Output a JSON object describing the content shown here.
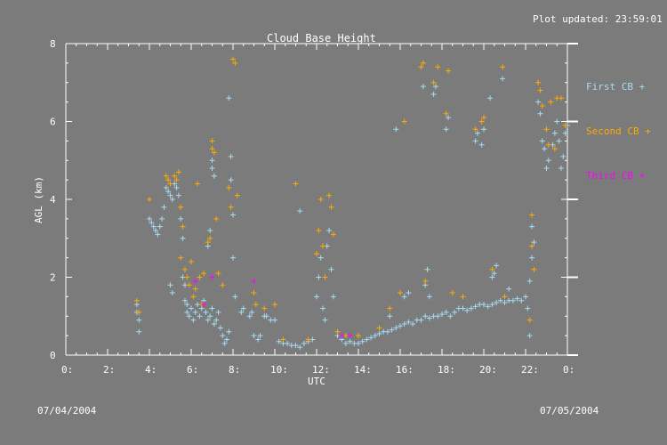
{
  "plot_updated": "Plot updated: 23:59:01",
  "date_left": "07/04/2004",
  "date_right": "07/05/2004",
  "colors": {
    "background": "#7b7b7b",
    "axes": "#ffffff",
    "first_cb": "#a6dcf2",
    "second_cb": "#ffaa00",
    "third_cb": "#ff00ff"
  },
  "chart_data": {
    "type": "scatter",
    "title": "Cloud Base Height",
    "xlabel": "UTC",
    "ylabel": "AGL (km)",
    "xlim": [
      0,
      24
    ],
    "ylim": [
      0,
      8
    ],
    "x_ticks": [
      0,
      2,
      4,
      6,
      8,
      10,
      12,
      14,
      16,
      18,
      20,
      22,
      24
    ],
    "x_tick_labels": [
      "0:",
      "2:",
      "4:",
      "6:",
      "8:",
      "10:",
      "12:",
      "14:",
      "16:",
      "18:",
      "20:",
      "22:",
      "0:"
    ],
    "y_ticks": [
      0,
      2,
      4,
      6,
      8
    ],
    "y_tick_labels": [
      "0",
      "2",
      "4",
      "6",
      "8"
    ],
    "grid": false,
    "legend_position": "right",
    "series": [
      {
        "name": "First CB +",
        "marker": "+",
        "color": "#a6dcf2",
        "points": [
          [
            3.4,
            1.3
          ],
          [
            3.4,
            1.1
          ],
          [
            3.5,
            0.9
          ],
          [
            3.5,
            0.6
          ],
          [
            4.0,
            3.5
          ],
          [
            4.1,
            3.4
          ],
          [
            4.2,
            3.3
          ],
          [
            4.3,
            3.2
          ],
          [
            4.4,
            3.1
          ],
          [
            4.5,
            3.3
          ],
          [
            4.6,
            3.5
          ],
          [
            4.7,
            3.8
          ],
          [
            4.8,
            4.3
          ],
          [
            4.9,
            4.2
          ],
          [
            5.0,
            4.1
          ],
          [
            5.1,
            4.0
          ],
          [
            5.2,
            4.4
          ],
          [
            5.0,
            1.8
          ],
          [
            5.1,
            1.6
          ],
          [
            5.3,
            4.3
          ],
          [
            5.4,
            4.1
          ],
          [
            5.5,
            3.5
          ],
          [
            5.6,
            3.0
          ],
          [
            5.6,
            2.0
          ],
          [
            5.7,
            1.8
          ],
          [
            5.7,
            1.4
          ],
          [
            5.8,
            1.3
          ],
          [
            5.8,
            1.1
          ],
          [
            5.9,
            1.0
          ],
          [
            6.0,
            1.2
          ],
          [
            6.1,
            0.9
          ],
          [
            6.2,
            1.1
          ],
          [
            6.3,
            1.3
          ],
          [
            6.4,
            1.0
          ],
          [
            6.5,
            1.2
          ],
          [
            6.6,
            1.4
          ],
          [
            6.7,
            1.1
          ],
          [
            6.8,
            0.9
          ],
          [
            6.9,
            1.0
          ],
          [
            7.0,
            1.2
          ],
          [
            7.1,
            0.8
          ],
          [
            7.2,
            0.9
          ],
          [
            7.3,
            1.1
          ],
          [
            7.4,
            0.7
          ],
          [
            7.5,
            0.5
          ],
          [
            7.6,
            0.3
          ],
          [
            7.7,
            0.4
          ],
          [
            7.8,
            0.6
          ],
          [
            6.8,
            2.8
          ],
          [
            6.9,
            3.2
          ],
          [
            7.0,
            4.8
          ],
          [
            7.0,
            5.0
          ],
          [
            7.1,
            4.6
          ],
          [
            7.8,
            6.6
          ],
          [
            7.9,
            5.1
          ],
          [
            7.9,
            4.5
          ],
          [
            8.0,
            3.6
          ],
          [
            8.0,
            2.5
          ],
          [
            8.1,
            1.5
          ],
          [
            8.4,
            1.1
          ],
          [
            8.5,
            1.2
          ],
          [
            8.8,
            1.0
          ],
          [
            8.9,
            1.1
          ],
          [
            9.0,
            0.5
          ],
          [
            9.2,
            0.4
          ],
          [
            9.3,
            0.5
          ],
          [
            9.5,
            1.0
          ],
          [
            9.6,
            1.0
          ],
          [
            9.8,
            0.9
          ],
          [
            10.0,
            0.9
          ],
          [
            10.2,
            0.35
          ],
          [
            10.4,
            0.3
          ],
          [
            10.6,
            0.3
          ],
          [
            10.8,
            0.25
          ],
          [
            11.0,
            0.25
          ],
          [
            11.2,
            0.2
          ],
          [
            11.4,
            0.3
          ],
          [
            11.6,
            0.35
          ],
          [
            11.2,
            3.7
          ],
          [
            11.8,
            0.4
          ],
          [
            12.0,
            1.5
          ],
          [
            12.1,
            2.0
          ],
          [
            12.2,
            2.5
          ],
          [
            12.3,
            1.2
          ],
          [
            12.4,
            0.9
          ],
          [
            12.5,
            2.8
          ],
          [
            12.6,
            3.2
          ],
          [
            12.7,
            2.2
          ],
          [
            12.8,
            1.5
          ],
          [
            13.0,
            0.5
          ],
          [
            13.2,
            0.4
          ],
          [
            13.4,
            0.3
          ],
          [
            13.6,
            0.35
          ],
          [
            13.8,
            0.3
          ],
          [
            14.0,
            0.3
          ],
          [
            14.2,
            0.35
          ],
          [
            14.4,
            0.4
          ],
          [
            14.6,
            0.45
          ],
          [
            14.8,
            0.5
          ],
          [
            15.0,
            0.55
          ],
          [
            15.2,
            0.6
          ],
          [
            15.4,
            0.6
          ],
          [
            15.6,
            0.65
          ],
          [
            15.8,
            0.7
          ],
          [
            16.0,
            0.75
          ],
          [
            16.2,
            0.8
          ],
          [
            16.4,
            0.85
          ],
          [
            16.6,
            0.8
          ],
          [
            16.8,
            0.9
          ],
          [
            17.0,
            0.9
          ],
          [
            17.2,
            1.0
          ],
          [
            17.4,
            0.95
          ],
          [
            17.6,
            1.0
          ],
          [
            17.8,
            1.0
          ],
          [
            18.0,
            1.05
          ],
          [
            18.2,
            1.1
          ],
          [
            18.4,
            1.0
          ],
          [
            18.6,
            1.1
          ],
          [
            18.8,
            1.2
          ],
          [
            19.0,
            1.2
          ],
          [
            19.2,
            1.15
          ],
          [
            19.4,
            1.2
          ],
          [
            19.6,
            1.25
          ],
          [
            19.8,
            1.3
          ],
          [
            20.0,
            1.3
          ],
          [
            20.2,
            1.25
          ],
          [
            20.4,
            1.3
          ],
          [
            20.6,
            1.35
          ],
          [
            20.8,
            1.4
          ],
          [
            21.0,
            1.35
          ],
          [
            21.2,
            1.4
          ],
          [
            21.4,
            1.4
          ],
          [
            21.6,
            1.45
          ],
          [
            21.8,
            1.4
          ],
          [
            22.0,
            1.5
          ],
          [
            15.5,
            1.0
          ],
          [
            16.2,
            1.5
          ],
          [
            16.4,
            1.6
          ],
          [
            17.2,
            1.8
          ],
          [
            17.3,
            2.2
          ],
          [
            17.4,
            1.5
          ],
          [
            15.8,
            5.8
          ],
          [
            17.1,
            6.9
          ],
          [
            17.6,
            6.7
          ],
          [
            17.7,
            6.9
          ],
          [
            18.2,
            5.8
          ],
          [
            18.3,
            6.1
          ],
          [
            19.6,
            5.5
          ],
          [
            19.7,
            5.7
          ],
          [
            19.9,
            5.4
          ],
          [
            20.0,
            5.8
          ],
          [
            20.3,
            6.6
          ],
          [
            20.9,
            7.1
          ],
          [
            20.4,
            2.0
          ],
          [
            20.5,
            2.1
          ],
          [
            20.6,
            2.3
          ],
          [
            21.2,
            1.7
          ],
          [
            22.2,
            0.5
          ],
          [
            22.1,
            1.2
          ],
          [
            22.2,
            1.9
          ],
          [
            22.3,
            2.5
          ],
          [
            22.4,
            2.9
          ],
          [
            22.3,
            3.3
          ],
          [
            22.6,
            6.5
          ],
          [
            22.7,
            6.2
          ],
          [
            22.8,
            5.5
          ],
          [
            22.9,
            5.3
          ],
          [
            23.0,
            4.8
          ],
          [
            23.1,
            5.0
          ],
          [
            23.3,
            5.4
          ],
          [
            23.4,
            5.7
          ],
          [
            23.5,
            6.0
          ],
          [
            23.6,
            5.5
          ],
          [
            23.7,
            4.8
          ],
          [
            23.8,
            5.1
          ],
          [
            23.9,
            5.7
          ],
          [
            24.0,
            5.9
          ]
        ]
      },
      {
        "name": "Second CB +",
        "marker": "+",
        "color": "#ffaa00",
        "points": [
          [
            3.4,
            1.4
          ],
          [
            3.5,
            1.1
          ],
          [
            4.0,
            4.0
          ],
          [
            4.8,
            4.6
          ],
          [
            4.9,
            4.5
          ],
          [
            5.0,
            4.4
          ],
          [
            5.2,
            4.6
          ],
          [
            5.3,
            4.5
          ],
          [
            5.4,
            4.7
          ],
          [
            5.5,
            3.8
          ],
          [
            5.5,
            2.5
          ],
          [
            5.6,
            3.3
          ],
          [
            5.7,
            2.2
          ],
          [
            5.8,
            2.0
          ],
          [
            5.9,
            1.8
          ],
          [
            6.0,
            2.4
          ],
          [
            6.1,
            1.5
          ],
          [
            6.2,
            1.7
          ],
          [
            6.3,
            4.4
          ],
          [
            6.4,
            2.0
          ],
          [
            6.5,
            1.3
          ],
          [
            6.6,
            2.1
          ],
          [
            6.8,
            2.9
          ],
          [
            6.9,
            3.0
          ],
          [
            7.0,
            5.3
          ],
          [
            7.0,
            5.5
          ],
          [
            7.1,
            5.2
          ],
          [
            7.2,
            3.5
          ],
          [
            7.3,
            2.1
          ],
          [
            7.5,
            1.8
          ],
          [
            7.8,
            4.3
          ],
          [
            7.9,
            3.8
          ],
          [
            8.0,
            7.6
          ],
          [
            8.1,
            7.5
          ],
          [
            8.2,
            4.1
          ],
          [
            9.0,
            1.6
          ],
          [
            9.1,
            1.3
          ],
          [
            9.5,
            1.2
          ],
          [
            10.0,
            1.3
          ],
          [
            10.4,
            0.4
          ],
          [
            11.0,
            4.4
          ],
          [
            11.6,
            0.4
          ],
          [
            12.0,
            2.6
          ],
          [
            12.1,
            3.2
          ],
          [
            12.2,
            4.0
          ],
          [
            12.3,
            2.8
          ],
          [
            12.4,
            2.0
          ],
          [
            12.6,
            4.1
          ],
          [
            12.7,
            3.8
          ],
          [
            12.8,
            3.1
          ],
          [
            13.0,
            0.6
          ],
          [
            13.4,
            0.5
          ],
          [
            14.0,
            0.5
          ],
          [
            15.0,
            0.7
          ],
          [
            15.5,
            1.2
          ],
          [
            16.0,
            1.6
          ],
          [
            16.2,
            6.0
          ],
          [
            17.0,
            7.4
          ],
          [
            17.1,
            7.5
          ],
          [
            17.2,
            1.9
          ],
          [
            17.6,
            7.0
          ],
          [
            17.8,
            7.4
          ],
          [
            18.2,
            6.2
          ],
          [
            18.3,
            7.3
          ],
          [
            18.5,
            1.6
          ],
          [
            19.0,
            1.5
          ],
          [
            19.6,
            5.8
          ],
          [
            19.9,
            6.0
          ],
          [
            20.0,
            6.1
          ],
          [
            20.4,
            2.2
          ],
          [
            20.9,
            7.4
          ],
          [
            21.0,
            1.5
          ],
          [
            22.2,
            0.9
          ],
          [
            22.3,
            2.8
          ],
          [
            22.3,
            3.6
          ],
          [
            22.4,
            2.2
          ],
          [
            22.6,
            7.0
          ],
          [
            22.7,
            6.8
          ],
          [
            22.8,
            6.4
          ],
          [
            23.0,
            5.8
          ],
          [
            23.1,
            5.4
          ],
          [
            23.2,
            6.5
          ],
          [
            23.4,
            5.3
          ],
          [
            23.5,
            6.6
          ],
          [
            23.7,
            6.6
          ],
          [
            23.9,
            5.9
          ]
        ]
      },
      {
        "name": "Third CB +",
        "marker": "+",
        "color": "#ff00ff",
        "points": [
          [
            6.2,
            1.9
          ],
          [
            6.6,
            1.3
          ],
          [
            7.0,
            2.0
          ],
          [
            9.0,
            1.9
          ],
          [
            13.2,
            0.5
          ],
          [
            13.6,
            0.5
          ]
        ]
      }
    ]
  }
}
